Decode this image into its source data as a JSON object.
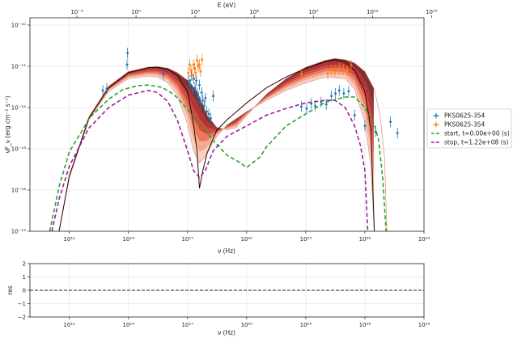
{
  "chart_data": [
    {
      "type": "scatter",
      "xlabel": "ν (Hz)",
      "ylabel": "νF_ν (erg cm⁻² s⁻¹)",
      "top_xlabel": "E (eV)",
      "xscale": "log",
      "yscale": "log",
      "xlim": [
        1000000000.0,
        1e+29
      ],
      "ylim": [
        1e-15,
        1.5e-10
      ],
      "grid": true,
      "legend_position": "outside-right",
      "x_tick_values": [
        100000000000.0,
        100000000000000.0,
        1e+17,
        1e+20,
        1e+23,
        1e+26,
        1e+29
      ],
      "x_tick_labels": [
        "10¹¹",
        "10¹⁴",
        "10¹⁷",
        "10²⁰",
        "10²³",
        "10²⁶",
        "10²⁹"
      ],
      "y_tick_values": [
        1e-15,
        1e-14,
        1e-13,
        1e-12,
        1e-11,
        1e-10
      ],
      "y_tick_labels": [
        "10⁻¹⁵",
        "10⁻¹⁴",
        "10⁻¹³",
        "10⁻¹²",
        "10⁻¹¹",
        "10⁻¹⁰"
      ],
      "top_tick_values_ev": [
        0.001,
        1.0,
        1000.0,
        1000000.0,
        1000000000.0,
        1000000000000.0,
        1000000000000000.0
      ],
      "top_tick_labels": [
        "10⁻³",
        "10⁰",
        "10³",
        "10⁶",
        "10⁹",
        "10¹²",
        "10¹⁵"
      ],
      "series": [
        {
          "name": "PKS0625-354",
          "color": "#1f77b4",
          "marker": "errorbar-point",
          "points": [
            [
              5000000000000.0,
              2.6e-12
            ],
            [
              8000000000000.0,
              2.9e-12
            ],
            [
              85000000000000.0,
              1.1e-11
            ],
            [
              90000000000000.0,
              2.1e-11
            ],
            [
              6000000000000000.0,
              6.5e-12
            ],
            [
              1.2e+17,
              4.5e-12
            ],
            [
              1.4e+17,
              3.6e-12
            ],
            [
              1.6e+17,
              6e-12
            ],
            [
              1.8e+17,
              2.6e-12
            ],
            [
              2.1e+17,
              5e-12
            ],
            [
              2.4e+17,
              3e-12
            ],
            [
              2.8e+17,
              4.5e-12
            ],
            [
              3.1e+17,
              2.2e-12
            ],
            [
              3.6e+17,
              1.8e-12
            ],
            [
              4e+17,
              3.5e-12
            ],
            [
              4.5e+17,
              1.3e-12
            ],
            [
              5.2e+17,
              2.3e-12
            ],
            [
              6e+17,
              1.5e-12
            ],
            [
              7e+17,
              1.1e-12
            ],
            [
              8e+17,
              1.7e-12
            ],
            [
              9.5e+17,
              8e-13
            ],
            [
              1.2e+18,
              7e-13
            ],
            [
              1.5e+18,
              5.5e-13
            ],
            [
              2e+18,
              1.9e-12
            ],
            [
              6e+22,
              1.05e-12
            ],
            [
              1.1e+23,
              9.5e-13
            ],
            [
              1.9e+23,
              1.25e-12
            ],
            [
              3e+23,
              1.1e-12
            ],
            [
              6e+23,
              1.35e-12
            ],
            [
              1.1e+24,
              1.2e-12
            ],
            [
              2e+24,
              1.9e-12
            ],
            [
              3.2e+24,
              2.2e-12
            ],
            [
              5e+24,
              2.6e-12
            ],
            [
              8.5e+24,
              2.2e-12
            ],
            [
              1.5e+25,
              2.5e-12
            ],
            [
              3e+25,
              6.5e-13
            ],
            [
              1e+26,
              3.6e-13
            ],
            [
              3.5e+26,
              2.6e-13
            ],
            [
              2e+27,
              4.5e-13
            ],
            [
              4.5e+27,
              2.4e-13
            ]
          ]
        },
        {
          "name": "PKS0625-354",
          "color": "#ff7f0e",
          "marker": "errorbar-point",
          "points": [
            [
              1.1e+17,
              7e-12
            ],
            [
              1.3e+17,
              1.1e-11
            ],
            [
              1.5e+17,
              8e-12
            ],
            [
              1.7e+17,
              6e-12
            ],
            [
              2e+17,
              1.1e-11
            ],
            [
              2.3e+17,
              9e-12
            ],
            [
              2.6e+17,
              7e-12
            ],
            [
              3e+17,
              1.4e-11
            ],
            [
              3.5e+17,
              1e-11
            ],
            [
              4e+17,
              1.1e-11
            ],
            [
              4.6e+17,
              7.5e-12
            ],
            [
              5.5e+17,
              1.45e-11
            ],
            [
              6e+22,
              6.5e-12
            ],
            [
              1.3e+24,
              6.5e-12
            ],
            [
              2e+24,
              8e-12
            ],
            [
              3e+24,
              7.5e-12
            ],
            [
              5e+24,
              9e-12
            ],
            [
              8e+24,
              8.5e-12
            ],
            [
              1.3e+25,
              8e-12
            ],
            [
              2e+25,
              1.05e-11
            ]
          ]
        },
        {
          "name": "start, t=0.00e+00 (s)",
          "color": "#2ca02c",
          "style": "dashed",
          "points": [
            [
              10000000000.0,
              1e-15
            ],
            [
              30000000000.0,
              1.2e-14
            ],
            [
              100000000000.0,
              8.5e-14
            ],
            [
              500000000000.0,
              3e-13
            ],
            [
              1000000000000.0,
              5.5e-13
            ],
            [
              10000000000000.0,
              1.6e-12
            ],
            [
              50000000000000.0,
              2.7e-12
            ],
            [
              300000000000000.0,
              3.4e-12
            ],
            [
              1000000000000000.0,
              3.5e-12
            ],
            [
              5000000000000000.0,
              3.1e-12
            ],
            [
              2e+16,
              2.1e-12
            ],
            [
              1e+17,
              9e-13
            ],
            [
              5e+17,
              3.6e-13
            ],
            [
              2e+18,
              1.6e-13
            ],
            [
              1e+19,
              7e-14
            ],
            [
              5e+19,
              4.5e-14
            ],
            [
              1e+20,
              3.5e-14
            ],
            [
              5e+20,
              6.5e-14
            ],
            [
              1e+21,
              1.1e-13
            ],
            [
              1e+22,
              3.6e-13
            ],
            [
              1e+23,
              7e-13
            ],
            [
              1e+24,
              1.35e-12
            ],
            [
              1e+25,
              1.8e-12
            ],
            [
              3e+25,
              1.8e-12
            ],
            [
              1e+26,
              1e-12
            ],
            [
              3e+26,
              4e-13
            ],
            [
              5e+26,
              1.6e-13
            ],
            [
              8e+26,
              2e-14
            ],
            [
              1.2e+27,
              1e-15
            ]
          ]
        },
        {
          "name": "stop, t=1.22e+08 (s)",
          "color": "#9b1f9b",
          "style": "dashed",
          "points": [
            [
              13000000000.0,
              1e-15
            ],
            [
              30000000000.0,
              6e-15
            ],
            [
              100000000000.0,
              3.8e-14
            ],
            [
              1000000000000.0,
              3.2e-13
            ],
            [
              10000000000000.0,
              1e-12
            ],
            [
              100000000000000.0,
              2e-12
            ],
            [
              1000000000000000.0,
              2.6e-12
            ],
            [
              3000000000000000.0,
              2.3e-12
            ],
            [
              1e+16,
              1.4e-12
            ],
            [
              3e+16,
              5e-13
            ],
            [
              1e+17,
              9e-14
            ],
            [
              2e+17,
              3e-14
            ],
            [
              4e+17,
              2e-14
            ],
            [
              8e+17,
              3e-14
            ],
            [
              2e+18,
              9e-14
            ],
            [
              1e+19,
              2e-13
            ],
            [
              1e+20,
              3.6e-13
            ],
            [
              1e+21,
              6.5e-13
            ],
            [
              1e+22,
              9.5e-13
            ],
            [
              1e+23,
              1.3e-12
            ],
            [
              1e+24,
              1.5e-12
            ],
            [
              3e+24,
              1.5e-12
            ],
            [
              1e+25,
              1e-12
            ],
            [
              3e+25,
              3.6e-13
            ],
            [
              6e+25,
              1.2e-13
            ],
            [
              1e+26,
              3e-14
            ],
            [
              1.4e+26,
              1e-15
            ]
          ]
        }
      ],
      "band": {
        "description": "family of time-evolving model curves (shaded reds)",
        "colors": [
          "#f8c9b4",
          "#f29b7c",
          "#e8603f",
          "#cc2a1f",
          "#a50f15",
          "#6b0d0d"
        ],
        "upper": [
          [
            30000000000.0,
            1e-15
          ],
          [
            100000000000.0,
            2.3e-14
          ],
          [
            1000000000000.0,
            6e-13
          ],
          [
            10000000000000.0,
            3.3e-12
          ],
          [
            100000000000000.0,
            7.5e-12
          ],
          [
            1000000000000000.0,
            9.5e-12
          ],
          [
            3000000000000000.0,
            9.8e-12
          ],
          [
            1e+16,
            9e-12
          ],
          [
            3e+16,
            7e-12
          ],
          [
            1e+17,
            4.6e-12
          ],
          [
            3e+17,
            2.5e-12
          ],
          [
            1e+18,
            6.5e-13
          ],
          [
            3e+18,
            3.3e-13
          ],
          [
            1e+19,
            2.9e-13
          ],
          [
            3e+19,
            3.3e-13
          ],
          [
            1e+20,
            6.5e-13
          ],
          [
            1e+21,
            2.1e-12
          ],
          [
            1e+22,
            5e-12
          ],
          [
            1e+23,
            9.5e-12
          ],
          [
            1e+24,
            1.4e-11
          ],
          [
            3e+24,
            1.55e-11
          ],
          [
            1e+25,
            1.45e-11
          ],
          [
            3e+25,
            1.2e-11
          ],
          [
            1e+26,
            7.5e-12
          ],
          [
            3e+26,
            2.8e-12
          ],
          [
            6e+26,
            6e-13
          ],
          [
            1e+27,
            6e-14
          ],
          [
            1.3e+27,
            1e-15
          ]
        ],
        "lower": [
          [
            30000000000.0,
            1e-15
          ],
          [
            100000000000.0,
            2e-14
          ],
          [
            1000000000000.0,
            5e-13
          ],
          [
            10000000000000.0,
            2.5e-12
          ],
          [
            100000000000000.0,
            5e-12
          ],
          [
            1000000000000000.0,
            5.8e-12
          ],
          [
            3000000000000000.0,
            5.5e-12
          ],
          [
            1e+16,
            4e-12
          ],
          [
            3e+16,
            2e-12
          ],
          [
            1e+17,
            4e-13
          ],
          [
            2e+17,
            9e-14
          ],
          [
            4e+17,
            4.5e-14
          ],
          [
            8e+17,
            6.5e-14
          ],
          [
            3e+18,
            2e-13
          ],
          [
            1e+19,
            3.8e-13
          ],
          [
            1e+20,
            8e-13
          ],
          [
            1e+21,
            1.5e-12
          ],
          [
            1e+22,
            2.6e-12
          ],
          [
            1e+23,
            4e-12
          ],
          [
            1e+24,
            5.5e-12
          ],
          [
            1e+25,
            5e-12
          ],
          [
            3e+25,
            2.8e-12
          ],
          [
            1e+26,
            4.5e-13
          ],
          [
            2e+26,
            4e-14
          ],
          [
            3e+26,
            1e-15
          ]
        ],
        "dark_edge": [
          [
            30000000000.0,
            1e-15
          ],
          [
            100000000000.0,
            2.2e-14
          ],
          [
            1000000000000.0,
            5.6e-13
          ],
          [
            10000000000000.0,
            3e-12
          ],
          [
            100000000000000.0,
            7e-12
          ],
          [
            1000000000000000.0,
            9.2e-12
          ],
          [
            3000000000000000.0,
            9.5e-12
          ],
          [
            1e+16,
            8.5e-12
          ],
          [
            3e+16,
            6e-12
          ],
          [
            1e+17,
            2.5e-12
          ],
          [
            2e+17,
            4e-13
          ],
          [
            3e+17,
            9e-14
          ],
          [
            4e+17,
            1.1e-14
          ],
          [
            6e+17,
            3e-14
          ],
          [
            1e+18,
            8e-14
          ],
          [
            3e+18,
            2.8e-13
          ],
          [
            1e+19,
            5e-13
          ],
          [
            1e+20,
            1.3e-12
          ],
          [
            1e+21,
            3e-12
          ],
          [
            1e+22,
            5.5e-12
          ],
          [
            1e+23,
            9e-12
          ],
          [
            1e+24,
            1.3e-11
          ],
          [
            3e+24,
            1.45e-11
          ],
          [
            1e+25,
            1.25e-11
          ],
          [
            3e+25,
            8e-12
          ],
          [
            1e+26,
            2.5e-12
          ],
          [
            2e+26,
            3e-13
          ],
          [
            3e+26,
            1e-15
          ]
        ]
      }
    },
    {
      "type": "line",
      "xlabel": "ν (Hz)",
      "ylabel": "res",
      "xscale": "log",
      "xlim": [
        1000000000.0,
        1e+29
      ],
      "ylim": [
        -2,
        2
      ],
      "y_tick_values": [
        -2,
        -1,
        0,
        1,
        2
      ],
      "y_tick_labels": [
        "−2",
        "−1",
        "0",
        "1",
        "2"
      ],
      "x_tick_values": [
        100000000000.0,
        100000000000000.0,
        1e+17,
        1e+20,
        1e+23,
        1e+26,
        1e+29
      ],
      "x_tick_labels": [
        "10¹¹",
        "10¹⁴",
        "10¹⁷",
        "10²⁰",
        "10²³",
        "10²⁶",
        "10²⁹"
      ],
      "series": [
        {
          "name": "",
          "color": "#222222",
          "style": "dashed",
          "points": [
            [
              1000000000.0,
              0
            ],
            [
              1e+29,
              0
            ]
          ]
        }
      ]
    }
  ]
}
